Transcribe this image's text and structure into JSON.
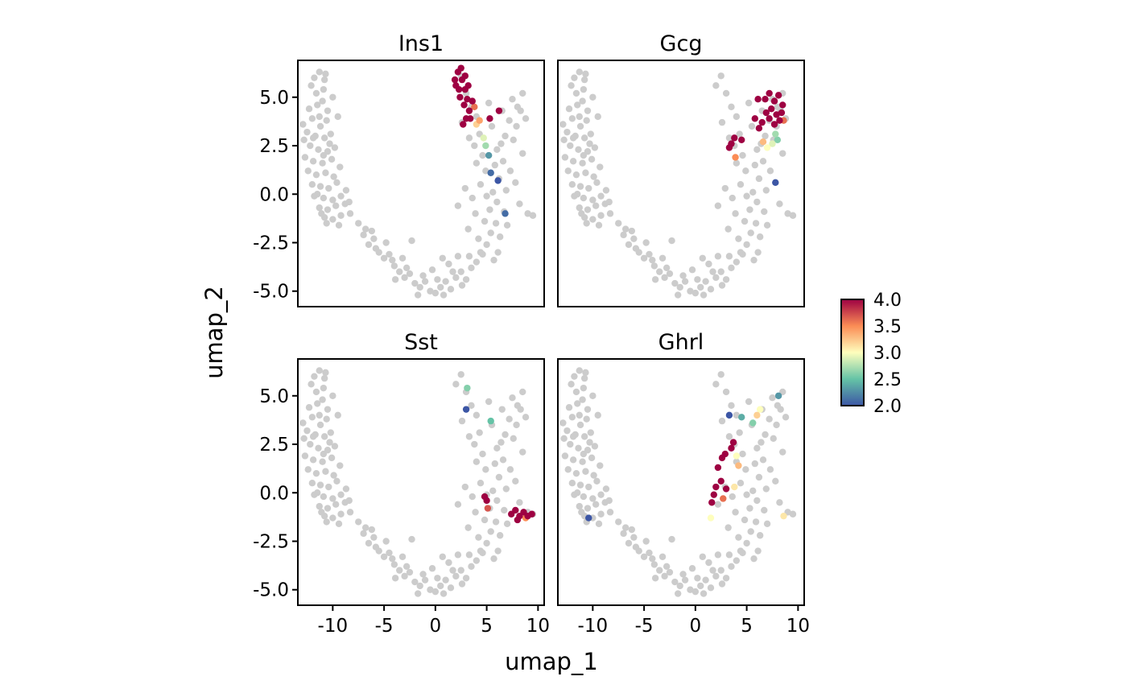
{
  "chart_data": {
    "type": "scatter",
    "xlabel": "umap_1",
    "ylabel": "umap_2",
    "xlim": [
      -13.4,
      10.6
    ],
    "ylim": [
      -5.8,
      6.9
    ],
    "x_ticks": [
      -10,
      -5,
      0,
      5,
      10
    ],
    "x_tick_labels": [
      "-10",
      "-5",
      "0",
      "5",
      "10"
    ],
    "y_ticks": [
      5.0,
      2.5,
      0.0,
      -2.5,
      -5.0
    ],
    "y_tick_labels": [
      "5.0",
      "2.5",
      "0.0",
      "-2.5",
      "-5.0"
    ],
    "background_point_color": "#cccccc",
    "colorbar": {
      "min": 2.0,
      "max": 4.0,
      "ticks": [
        4.0,
        3.5,
        3.0,
        2.5,
        2.0
      ],
      "tick_labels": [
        "4.0",
        "3.5",
        "3.0",
        "2.5",
        "2.0"
      ],
      "palette": [
        "#3c56a5",
        "#65c3a6",
        "#fefebd",
        "#fb8c55",
        "#9e0142"
      ],
      "placement": "right"
    },
    "background_cells": {
      "left_arm": [
        [
          -11.8,
          6.0
        ],
        [
          -11.3,
          6.3
        ],
        [
          -10.7,
          6.2
        ],
        [
          -12.1,
          5.6
        ],
        [
          -11.6,
          5.2
        ],
        [
          -10.9,
          5.4
        ],
        [
          -11.0,
          4.8
        ],
        [
          -12.3,
          4.4
        ],
        [
          -11.5,
          4.6
        ],
        [
          -10.5,
          4.3
        ],
        [
          -12.0,
          3.9
        ],
        [
          -11.2,
          3.5
        ],
        [
          -10.6,
          3.8
        ],
        [
          -12.5,
          3.2
        ],
        [
          -11.7,
          3.0
        ],
        [
          -10.8,
          2.9
        ],
        [
          -10.2,
          3.1
        ],
        [
          -12.2,
          2.5
        ],
        [
          -11.4,
          2.3
        ],
        [
          -10.5,
          2.2
        ],
        [
          -12.7,
          1.9
        ],
        [
          -11.9,
          1.7
        ],
        [
          -11.0,
          1.6
        ],
        [
          -10.1,
          1.8
        ],
        [
          -12.4,
          1.2
        ],
        [
          -11.6,
          1.0
        ],
        [
          -10.7,
          1.1
        ],
        [
          -9.9,
          0.9
        ],
        [
          -12.0,
          0.5
        ],
        [
          -11.2,
          0.4
        ],
        [
          -10.4,
          0.3
        ],
        [
          -9.6,
          0.6
        ],
        [
          -11.8,
          -0.1
        ],
        [
          -10.9,
          -0.2
        ],
        [
          -10.0,
          -0.3
        ],
        [
          -9.2,
          -0.1
        ],
        [
          -11.3,
          -0.7
        ],
        [
          -10.5,
          -0.8
        ],
        [
          -9.7,
          -0.6
        ],
        [
          -8.8,
          -0.5
        ],
        [
          -10.8,
          -1.2
        ],
        [
          -10.0,
          -1.3
        ],
        [
          -9.2,
          -1.1
        ],
        [
          -8.3,
          -1.0
        ],
        [
          -12.9,
          3.6
        ],
        [
          -12.8,
          2.8
        ],
        [
          -11.3,
          4.0
        ],
        [
          -10.3,
          2.6
        ],
        [
          -11.5,
          0.0
        ],
        [
          -10.6,
          -1.5
        ],
        [
          -9.4,
          -1.6
        ],
        [
          -10.9,
          2.0
        ],
        [
          -11.9,
          2.9
        ],
        [
          -10.0,
          5.0
        ],
        [
          -10.8,
          5.9
        ],
        [
          -9.5,
          4.0
        ],
        [
          -9.8,
          2.4
        ],
        [
          -9.3,
          1.4
        ],
        [
          -8.7,
          0.2
        ],
        [
          -8.4,
          -0.4
        ],
        [
          -11.1,
          -1.0
        ]
      ],
      "bottom_arc": [
        [
          -7.5,
          -1.5
        ],
        [
          -7.0,
          -2.1
        ],
        [
          -6.5,
          -2.6
        ],
        [
          -6.0,
          -2.3
        ],
        [
          -5.5,
          -3.0
        ],
        [
          -5.0,
          -3.3
        ],
        [
          -4.5,
          -3.1
        ],
        [
          -4.0,
          -3.7
        ],
        [
          -3.5,
          -4.0
        ],
        [
          -3.0,
          -4.3
        ],
        [
          -2.5,
          -4.1
        ],
        [
          -2.0,
          -4.6
        ],
        [
          -1.5,
          -4.8
        ],
        [
          -1.0,
          -4.5
        ],
        [
          -0.5,
          -5.0
        ],
        [
          0.0,
          -5.1
        ],
        [
          0.5,
          -4.8
        ],
        [
          1.0,
          -4.5
        ],
        [
          1.5,
          -4.9
        ],
        [
          2.0,
          -4.3
        ],
        [
          2.5,
          -4.0
        ],
        [
          3.0,
          -4.4
        ],
        [
          3.5,
          -3.8
        ],
        [
          4.0,
          -3.5
        ],
        [
          -6.8,
          -1.8
        ],
        [
          -5.8,
          -2.8
        ],
        [
          -4.2,
          -3.4
        ],
        [
          -2.8,
          -3.8
        ],
        [
          -1.2,
          -4.2
        ],
        [
          0.2,
          -4.4
        ],
        [
          1.7,
          -4.0
        ],
        [
          3.3,
          -3.2
        ],
        [
          -3.9,
          -4.4
        ],
        [
          -1.7,
          -5.2
        ],
        [
          0.8,
          -5.2
        ],
        [
          2.6,
          -4.7
        ],
        [
          -2.3,
          -2.4
        ],
        [
          -4.8,
          -2.5
        ],
        [
          -0.3,
          -3.9
        ],
        [
          1.3,
          -3.6
        ],
        [
          2.2,
          -3.2
        ],
        [
          4.4,
          -3.0
        ],
        [
          -6.2,
          -1.9
        ],
        [
          -3.2,
          -3.3
        ],
        [
          0.7,
          -3.3
        ]
      ],
      "right_arm": [
        [
          2.0,
          5.6
        ],
        [
          2.5,
          6.1
        ],
        [
          3.0,
          5.2
        ],
        [
          3.5,
          4.5
        ],
        [
          4.0,
          4.0
        ],
        [
          4.3,
          3.1
        ],
        [
          3.8,
          2.5
        ],
        [
          4.6,
          2.0
        ],
        [
          4.9,
          1.2
        ],
        [
          4.4,
          0.5
        ],
        [
          5.0,
          -0.1
        ],
        [
          5.3,
          -0.8
        ],
        [
          4.8,
          -1.4
        ],
        [
          5.4,
          -2.0
        ],
        [
          5.0,
          -2.6
        ],
        [
          4.6,
          -3.1
        ],
        [
          6.5,
          4.3
        ],
        [
          7.2,
          3.8
        ],
        [
          7.5,
          4.9
        ],
        [
          8.0,
          4.5
        ],
        [
          8.5,
          5.2
        ],
        [
          6.8,
          3.0
        ],
        [
          7.6,
          2.8
        ],
        [
          8.8,
          3.9
        ],
        [
          6.0,
          2.3
        ],
        [
          6.6,
          1.7
        ],
        [
          7.3,
          1.2
        ],
        [
          6.2,
          0.8
        ],
        [
          6.9,
          0.2
        ],
        [
          6.0,
          -0.4
        ],
        [
          6.7,
          -0.9
        ],
        [
          5.9,
          -1.5
        ],
        [
          8.2,
          -0.5
        ],
        [
          9.0,
          -1.0
        ],
        [
          9.5,
          -1.1
        ],
        [
          5.5,
          3.5
        ],
        [
          5.8,
          1.5
        ],
        [
          6.3,
          -2.2
        ],
        [
          5.7,
          -3.4
        ],
        [
          4.0,
          1.6
        ],
        [
          3.6,
          -0.2
        ],
        [
          3.2,
          -1.8
        ],
        [
          8.5,
          2.1
        ],
        [
          7.8,
          0.6
        ],
        [
          7.0,
          -1.6
        ],
        [
          4.2,
          -2.3
        ],
        [
          2.9,
          0.3
        ],
        [
          2.2,
          -0.6
        ],
        [
          5.2,
          4.7
        ],
        [
          7.9,
          3.5
        ],
        [
          6.4,
          2.6
        ],
        [
          5.6,
          0.1
        ],
        [
          3.9,
          -1.0
        ],
        [
          8.3,
          4.3
        ],
        [
          2.6,
          3.7
        ],
        [
          3.3,
          2.9
        ],
        [
          6.1,
          -3.0
        ]
      ]
    },
    "series": [
      {
        "name": "Ins1",
        "points": [
          [
            2.0,
            5.6,
            4.0
          ],
          [
            2.2,
            6.3,
            4.0
          ],
          [
            2.6,
            5.9,
            4.0
          ],
          [
            2.9,
            5.4,
            4.0
          ],
          [
            2.4,
            5.0,
            4.0
          ],
          [
            3.1,
            4.9,
            4.0
          ],
          [
            2.8,
            4.6,
            4.0
          ],
          [
            3.3,
            4.3,
            4.0
          ],
          [
            3.0,
            3.9,
            4.0
          ],
          [
            2.7,
            3.6,
            4.0
          ],
          [
            3.6,
            4.8,
            4.0
          ],
          [
            2.3,
            5.4,
            4.0
          ],
          [
            2.5,
            6.5,
            4.0
          ],
          [
            1.9,
            5.9,
            4.0
          ],
          [
            3.2,
            5.6,
            4.0
          ],
          [
            2.9,
            6.1,
            4.0
          ],
          [
            3.4,
            3.9,
            4.0
          ],
          [
            4.0,
            3.6,
            3.2
          ],
          [
            4.3,
            3.8,
            3.4
          ],
          [
            3.8,
            4.5,
            3.6
          ],
          [
            4.7,
            2.9,
            2.9
          ],
          [
            4.9,
            2.5,
            2.7
          ],
          [
            5.2,
            2.0,
            2.3
          ],
          [
            5.4,
            1.1,
            2.1
          ],
          [
            6.1,
            0.7,
            2.0
          ],
          [
            6.8,
            -1.0,
            2.1
          ],
          [
            6.2,
            4.3,
            4.0
          ],
          [
            5.3,
            3.9,
            4.0
          ]
        ]
      },
      {
        "name": "Gcg",
        "points": [
          [
            6.8,
            4.9,
            4.0
          ],
          [
            7.2,
            5.2,
            4.0
          ],
          [
            7.7,
            4.8,
            4.0
          ],
          [
            8.1,
            5.1,
            4.0
          ],
          [
            8.5,
            4.6,
            4.0
          ],
          [
            7.4,
            4.4,
            4.0
          ],
          [
            7.9,
            4.1,
            4.0
          ],
          [
            8.4,
            4.2,
            4.0
          ],
          [
            6.9,
            4.2,
            4.0
          ],
          [
            7.2,
            3.9,
            4.0
          ],
          [
            7.7,
            3.6,
            4.0
          ],
          [
            8.2,
            3.8,
            4.0
          ],
          [
            8.6,
            3.8,
            3.6
          ],
          [
            6.5,
            3.7,
            4.0
          ],
          [
            6.2,
            3.4,
            4.0
          ],
          [
            5.8,
            3.9,
            4.0
          ],
          [
            3.5,
            2.6,
            4.0
          ],
          [
            3.3,
            2.4,
            4.0
          ],
          [
            3.8,
            2.9,
            4.0
          ],
          [
            4.5,
            2.8,
            4.0
          ],
          [
            3.9,
            1.9,
            3.5
          ],
          [
            6.6,
            2.7,
            3.3
          ],
          [
            7.0,
            2.4,
            3.0
          ],
          [
            7.5,
            2.6,
            2.9
          ],
          [
            7.8,
            3.1,
            2.7
          ],
          [
            8.0,
            2.8,
            2.6
          ],
          [
            6.1,
            4.9,
            4.0
          ],
          [
            7.8,
            0.6,
            2.0
          ]
        ]
      },
      {
        "name": "Sst",
        "points": [
          [
            3.0,
            4.3,
            2.0
          ],
          [
            3.1,
            5.4,
            2.6
          ],
          [
            5.4,
            3.7,
            2.5
          ],
          [
            5.0,
            -0.4,
            4.0
          ],
          [
            4.8,
            -0.2,
            4.0
          ],
          [
            5.1,
            -0.8,
            3.7
          ],
          [
            7.8,
            -0.9,
            4.0
          ],
          [
            8.2,
            -1.2,
            4.0
          ],
          [
            8.6,
            -1.0,
            4.0
          ],
          [
            9.0,
            -1.2,
            4.0
          ],
          [
            9.4,
            -1.1,
            4.0
          ],
          [
            8.0,
            -1.4,
            4.0
          ],
          [
            7.4,
            -1.1,
            4.0
          ],
          [
            8.8,
            -1.3,
            3.5
          ]
        ]
      },
      {
        "name": "Ghrl",
        "points": [
          [
            3.3,
            4.0,
            2.0
          ],
          [
            4.5,
            3.9,
            2.4
          ],
          [
            5.6,
            3.6,
            2.6
          ],
          [
            6.0,
            4.0,
            3.2
          ],
          [
            6.3,
            4.3,
            3.0
          ],
          [
            3.7,
            2.6,
            4.0
          ],
          [
            3.5,
            2.3,
            4.0
          ],
          [
            2.9,
            2.0,
            4.0
          ],
          [
            2.6,
            1.8,
            4.0
          ],
          [
            2.2,
            1.3,
            4.0
          ],
          [
            2.5,
            0.6,
            4.0
          ],
          [
            2.0,
            0.3,
            4.0
          ],
          [
            1.8,
            -0.1,
            4.0
          ],
          [
            1.6,
            -0.5,
            4.0
          ],
          [
            3.0,
            0.2,
            4.0
          ],
          [
            2.7,
            -0.3,
            3.6
          ],
          [
            4.0,
            1.9,
            3.0
          ],
          [
            4.2,
            1.4,
            3.3
          ],
          [
            1.5,
            -1.3,
            3.0
          ],
          [
            3.8,
            0.3,
            3.1
          ],
          [
            -10.4,
            -1.3,
            2.0
          ],
          [
            8.1,
            5.0,
            2.3
          ],
          [
            8.6,
            -1.2,
            3.1
          ]
        ]
      }
    ]
  }
}
